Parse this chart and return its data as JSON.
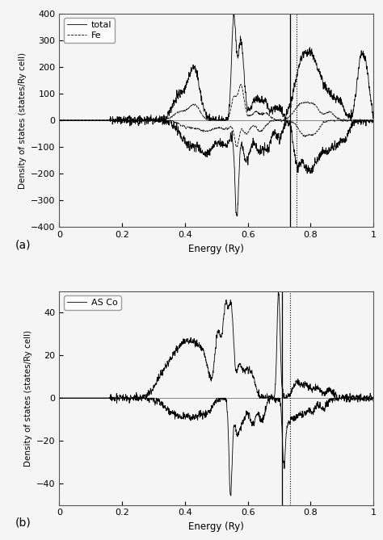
{
  "xlabel": "Energy (Ry)",
  "ylabel_a": "Density of states (states/Ry cell)",
  "ylabel_b": "Density of states (states/Ry cell)",
  "label_a": "(a)",
  "label_b": "(b)",
  "legend_a": [
    "total",
    "Fe"
  ],
  "legend_b": [
    "AS Co"
  ],
  "xlim": [
    0,
    1
  ],
  "ylim_a": [
    -400,
    400
  ],
  "ylim_b": [
    -50,
    50
  ],
  "yticks_a": [
    -400,
    -300,
    -200,
    -100,
    0,
    100,
    200,
    300,
    400
  ],
  "yticks_b": [
    -40,
    -20,
    0,
    20,
    40
  ],
  "xticks": [
    0,
    0.2,
    0.4,
    0.6,
    0.8,
    1
  ],
  "vline_solid": 0.735,
  "vline_dot": 0.755,
  "vline_b_solid": 0.71,
  "vline_b_dot": 0.735,
  "bg_color": "#f0f0f0",
  "line_color": "#000000",
  "seed_a": 42,
  "seed_b": 99
}
